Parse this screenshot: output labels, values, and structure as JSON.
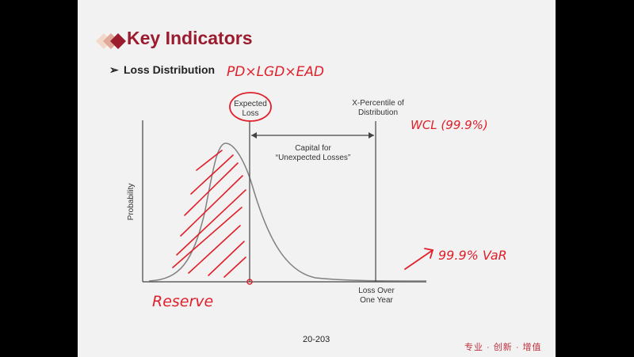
{
  "slide": {
    "title": "Key Indicators",
    "bullet": "Loss Distribution",
    "page_number": "20-203",
    "footer": "专业 · 创新 · 增值"
  },
  "diagram": {
    "y_axis_label": "Probability",
    "expected_loss_label": [
      "Expected",
      "Loss"
    ],
    "x_percentile_label": [
      "X-Percentile of",
      "Distribution"
    ],
    "capital_label": [
      "Capital for",
      "“Unexpected Losses”"
    ],
    "x_axis_label": [
      "Loss Over",
      "One Year"
    ]
  },
  "handwriting": {
    "formula": "PD×LGD×EAD",
    "wcl": "WCL (99.9%)",
    "var": "99.9% VaR",
    "reserve": "Reserve"
  },
  "colors": {
    "title": "#9b1c2e",
    "annotation_red": "#e0202a",
    "curve": "#808080",
    "line": "#444444"
  }
}
